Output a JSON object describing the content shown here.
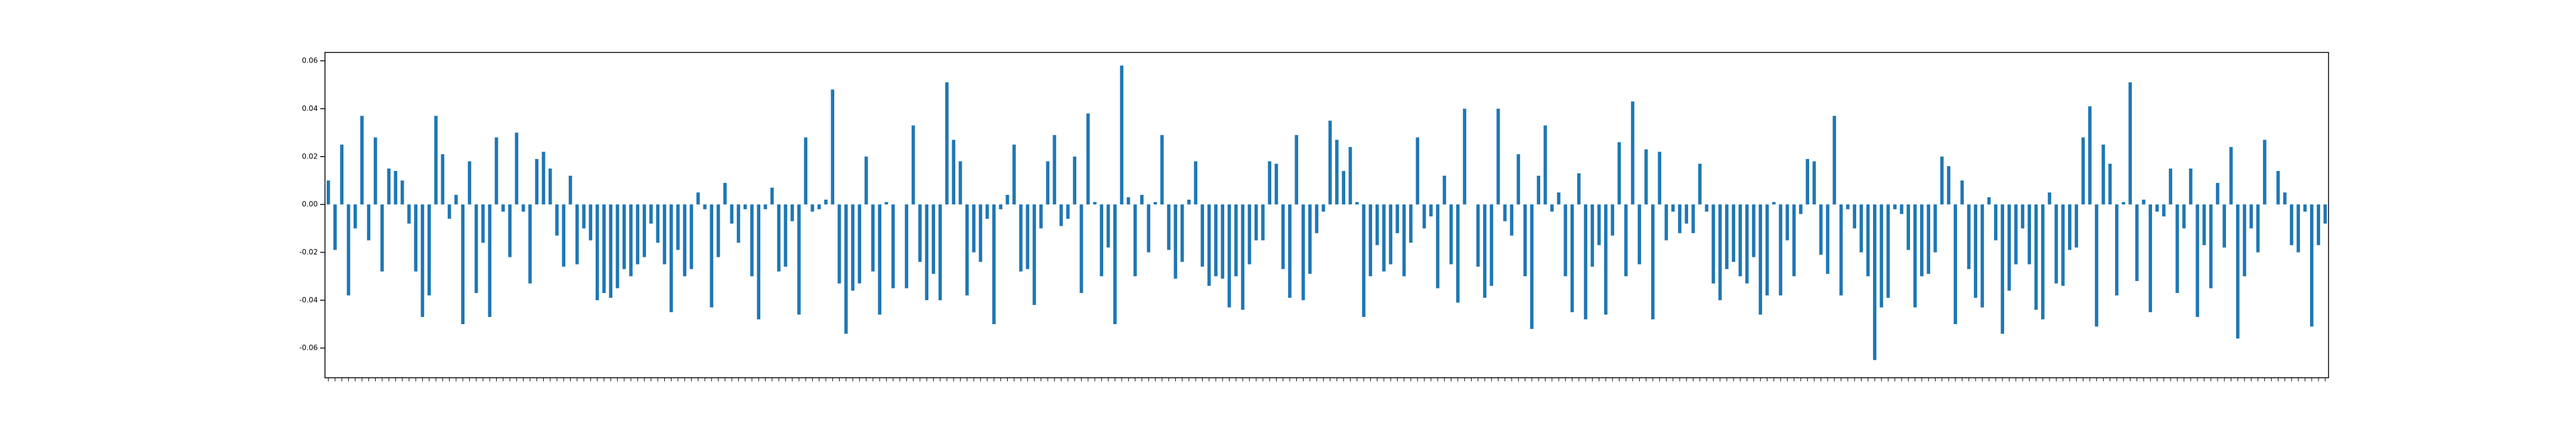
{
  "chart_data": {
    "type": "bar",
    "color": "#1f77b4",
    "grid": false,
    "ylim": [
      -0.0724,
      0.0635
    ],
    "yticks": [
      -0.06,
      -0.04,
      -0.02,
      {
        "value": 0,
        "label": "0.00"
      },
      0.02,
      0.04,
      0.06
    ],
    "categories": [
      null,
      null,
      null,
      null,
      null,
      null,
      null,
      null,
      null,
      null,
      null,
      null,
      null,
      null,
      null,
      null,
      null,
      null,
      null,
      null,
      null,
      null,
      null,
      null,
      null,
      null,
      null,
      null,
      null,
      null,
      null,
      null,
      null,
      null,
      null,
      null,
      null,
      null,
      null,
      null,
      null,
      null,
      null,
      null,
      null,
      null,
      null,
      null,
      null,
      null,
      null,
      null,
      null,
      null,
      null,
      null,
      null,
      null,
      null,
      null,
      null,
      null,
      null,
      null,
      null,
      null,
      null,
      null,
      null,
      null,
      null,
      null,
      null,
      null,
      null,
      null,
      null,
      null,
      null,
      null,
      null,
      null,
      null,
      null,
      null,
      null,
      null,
      null,
      null,
      null,
      null,
      null,
      null,
      null,
      null,
      null,
      null,
      null,
      null,
      null,
      null,
      null,
      null,
      null,
      null,
      null,
      null,
      null,
      null,
      null,
      null,
      null,
      null,
      null,
      null,
      null,
      null,
      null,
      null,
      null,
      null,
      null,
      null,
      null,
      null,
      null,
      null,
      null,
      null,
      null,
      null,
      null,
      null,
      null,
      null,
      null,
      null,
      null,
      null,
      null,
      null,
      null,
      null,
      null,
      null,
      null,
      null,
      null,
      null,
      null,
      null,
      null,
      null,
      null,
      null,
      null,
      null,
      null,
      null,
      null,
      null,
      null,
      null,
      null,
      null,
      null,
      null,
      null,
      null,
      null,
      null,
      null,
      null,
      null,
      null,
      null,
      null,
      null,
      null,
      null,
      null,
      null,
      null,
      null,
      null,
      null,
      null,
      null,
      null,
      null,
      null,
      null,
      null,
      null,
      null,
      null,
      null,
      null,
      null,
      null,
      null,
      null,
      null,
      null,
      null,
      null,
      null,
      null,
      null,
      null,
      null,
      null,
      null,
      null,
      null,
      null,
      null,
      null,
      null,
      null,
      null,
      null,
      null,
      null,
      null,
      null,
      null,
      null,
      null,
      null,
      null,
      null,
      null,
      null,
      null,
      null,
      null,
      null,
      null,
      null,
      null,
      null,
      null,
      null,
      null,
      null,
      null,
      null,
      null,
      null,
      null,
      null,
      null,
      null,
      null,
      null,
      null,
      null,
      null,
      null,
      null,
      null,
      null,
      null,
      null,
      null,
      null,
      null,
      null,
      null,
      null,
      null,
      null,
      null,
      null,
      null,
      null,
      null,
      null,
      null,
      null,
      null,
      null,
      null,
      null,
      null,
      null,
      null,
      null,
      null,
      null,
      null,
      null,
      null,
      null,
      null,
      null,
      null
    ],
    "values": [
      0.01,
      -0.019,
      0.025,
      -0.038,
      -0.01,
      0.037,
      -0.015,
      0.028,
      -0.028,
      0.015,
      0.014,
      0.01,
      -0.008,
      -0.028,
      -0.047,
      -0.038,
      0.037,
      0.021,
      -0.006,
      0.004,
      -0.05,
      0.018,
      -0.037,
      -0.016,
      -0.047,
      0.028,
      -0.003,
      -0.022,
      0.03,
      -0.003,
      -0.033,
      0.019,
      0.022,
      0.015,
      -0.013,
      -0.026,
      0.012,
      -0.025,
      -0.01,
      -0.015,
      -0.04,
      -0.037,
      -0.039,
      -0.035,
      -0.027,
      -0.03,
      -0.025,
      -0.022,
      -0.008,
      -0.016,
      -0.025,
      -0.045,
      -0.019,
      -0.03,
      -0.027,
      0.005,
      -0.002,
      -0.043,
      -0.022,
      0.009,
      -0.008,
      -0.016,
      -0.002,
      -0.03,
      -0.048,
      -0.002,
      0.007,
      -0.028,
      -0.026,
      -0.007,
      -0.046,
      0.028,
      -0.003,
      -0.002,
      0.002,
      0.048,
      -0.033,
      -0.054,
      -0.036,
      -0.033,
      0.02,
      -0.028,
      -0.046,
      0.001,
      -0.035,
      0.0,
      -0.035,
      0.033,
      -0.024,
      -0.04,
      -0.029,
      -0.04,
      0.051,
      0.027,
      0.018,
      -0.038,
      -0.02,
      -0.024,
      -0.006,
      -0.05,
      -0.002,
      0.004,
      0.025,
      -0.028,
      -0.027,
      -0.042,
      -0.01,
      0.018,
      0.029,
      -0.009,
      -0.006,
      0.02,
      -0.037,
      0.038,
      0.001,
      -0.03,
      -0.018,
      -0.05,
      0.058,
      0.003,
      -0.03,
      0.004,
      -0.02,
      0.001,
      0.029,
      -0.019,
      -0.031,
      -0.024,
      0.002,
      0.018,
      -0.026,
      -0.034,
      -0.03,
      -0.031,
      -0.043,
      -0.03,
      -0.044,
      -0.025,
      -0.015,
      -0.015,
      0.018,
      0.017,
      -0.027,
      -0.039,
      0.029,
      -0.04,
      -0.029,
      -0.012,
      -0.003,
      0.035,
      0.027,
      0.014,
      0.024,
      0.001,
      -0.047,
      -0.03,
      -0.017,
      -0.028,
      -0.025,
      -0.012,
      -0.03,
      -0.016,
      0.028,
      -0.01,
      -0.005,
      -0.035,
      0.012,
      -0.025,
      -0.041,
      0.04,
      0.0,
      -0.026,
      -0.039,
      -0.034,
      0.04,
      -0.007,
      -0.013,
      0.021,
      -0.03,
      -0.052,
      0.012,
      0.033,
      -0.003,
      0.005,
      -0.03,
      -0.045,
      0.013,
      -0.048,
      -0.026,
      -0.017,
      -0.046,
      -0.013,
      0.026,
      -0.03,
      0.043,
      -0.025,
      0.023,
      -0.048,
      0.022,
      -0.015,
      -0.003,
      -0.012,
      -0.008,
      -0.012,
      0.017,
      -0.003,
      -0.033,
      -0.04,
      -0.027,
      -0.024,
      -0.03,
      -0.033,
      -0.022,
      -0.046,
      -0.038,
      0.001,
      -0.038,
      -0.015,
      -0.03,
      -0.004,
      0.019,
      0.018,
      -0.021,
      -0.029,
      0.037,
      -0.038,
      -0.002,
      -0.01,
      -0.02,
      -0.03,
      -0.065,
      -0.043,
      -0.039,
      -0.002,
      -0.004,
      -0.019,
      -0.043,
      -0.03,
      -0.029,
      -0.02,
      0.02,
      0.016,
      -0.05,
      0.01,
      -0.027,
      -0.039,
      -0.043,
      0.003,
      -0.015,
      -0.054,
      -0.036,
      -0.025,
      -0.01,
      -0.025,
      -0.044,
      -0.048,
      0.005,
      -0.033,
      -0.034,
      -0.019,
      -0.018,
      0.028,
      0.041,
      -0.051,
      0.025,
      0.017,
      -0.038,
      0.001,
      0.051,
      -0.032,
      0.002,
      -0.045,
      -0.003,
      -0.005,
      0.015,
      -0.037,
      -0.01,
      0.015,
      -0.047,
      -0.017,
      -0.035,
      0.009,
      -0.018,
      0.024,
      -0.056,
      -0.03,
      -0.01,
      -0.02,
      0.027,
      0.0,
      0.014,
      0.005,
      -0.017,
      -0.02,
      -0.003,
      -0.051,
      -0.017,
      -0.008
    ]
  }
}
